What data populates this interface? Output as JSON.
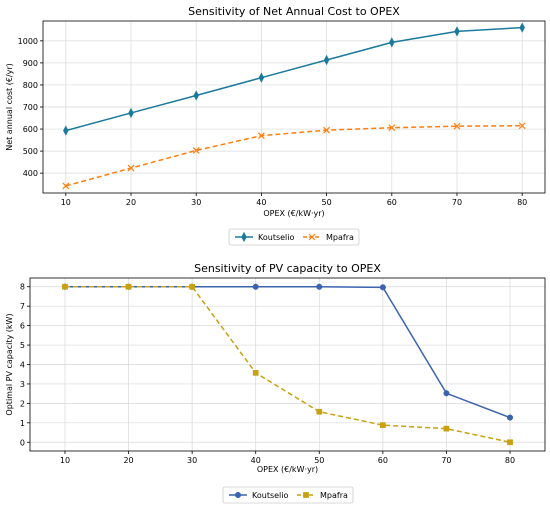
{
  "chart_data": [
    {
      "type": "line",
      "title": "Sensitivity of Net Annual Cost to OPEX",
      "xlabel": "OPEX (€/kW·yr)",
      "ylabel": "Net annual cost (€/yr)",
      "x": [
        10,
        20,
        30,
        40,
        50,
        60,
        70,
        80
      ],
      "xlim": [
        6.5,
        83.5
      ],
      "ylim": [
        310,
        1090
      ],
      "yticks": [
        400,
        500,
        600,
        700,
        800,
        900,
        1000
      ],
      "grid": true,
      "legend": "below",
      "series": [
        {
          "name": "Koutselio",
          "values": [
            593,
            673,
            752,
            833,
            913,
            993,
            1043,
            1060
          ],
          "color": "#1b7a9c",
          "style": "solid",
          "marker": "thin_diamond"
        },
        {
          "name": "Mpafra",
          "values": [
            342,
            423,
            503,
            570,
            595,
            606,
            613,
            615
          ],
          "color": "#ff7f0e",
          "style": "dashed",
          "marker": "x"
        }
      ]
    },
    {
      "type": "line",
      "title": "Sensitivity of PV capacity to OPEX",
      "xlabel": "OPEX (€/kW·yr)",
      "ylabel": "Optimal PV capacity (kW)",
      "x": [
        10,
        20,
        30,
        40,
        50,
        60,
        70,
        80
      ],
      "xlim": [
        4.5,
        85.5
      ],
      "ylim": [
        -0.45,
        8.45
      ],
      "yticks": [
        0,
        1,
        2,
        3,
        4,
        5,
        6,
        7,
        8
      ],
      "grid": true,
      "legend": "below",
      "series": [
        {
          "name": "Koutselio",
          "values": [
            8.0,
            8.0,
            8.0,
            8.0,
            8.0,
            7.97,
            2.52,
            1.27
          ],
          "color": "#3a63b0",
          "style": "solid",
          "marker": "circle"
        },
        {
          "name": "Mpafra",
          "values": [
            8.0,
            8.0,
            8.0,
            3.57,
            1.57,
            0.88,
            0.7,
            0.0
          ],
          "color": "#c8a010",
          "style": "dashed",
          "marker": "square"
        }
      ]
    }
  ]
}
